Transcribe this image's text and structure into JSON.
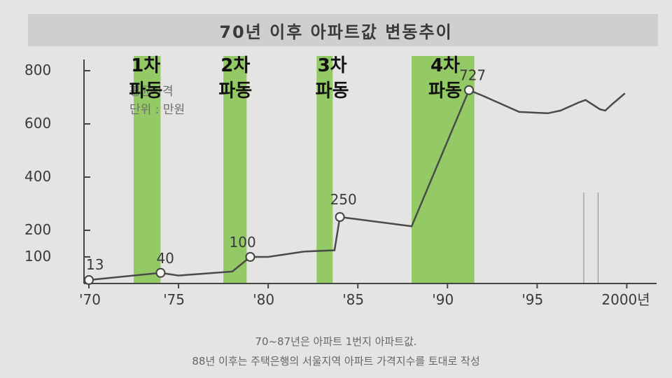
{
  "chart_data": {
    "type": "line",
    "title": "70년 이후 아파트값 변동추이",
    "unit_lines": [
      "평균가격",
      "단위 : 만원"
    ],
    "x_ticks": [
      "'70",
      "'75",
      "'80",
      "'85",
      "'90",
      "'95",
      "2000년"
    ],
    "x_tick_values": [
      1970,
      1975,
      1980,
      1985,
      1990,
      1995,
      2000
    ],
    "y_ticks": [
      "800",
      "600",
      "400",
      "200",
      "100"
    ],
    "y_tick_values": [
      800,
      600,
      400,
      200,
      100
    ],
    "ylim": [
      0,
      800
    ],
    "xlim": [
      1970,
      2001
    ],
    "series": [
      {
        "x": [
          1970,
          1974,
          1975,
          1978,
          1979,
          1980,
          1982,
          1983.7,
          1984,
          1988,
          1991.2,
          1992,
          1994,
          1995.6,
          1996.3,
          1997.3,
          1997.7,
          1998.5,
          1998.8,
          1999.2,
          1999.9
        ],
        "y": [
          13,
          40,
          30,
          45,
          100,
          100,
          120,
          125,
          250,
          215,
          727,
          705,
          645,
          640,
          650,
          680,
          690,
          655,
          650,
          675,
          715
        ]
      }
    ],
    "point_labels": [
      {
        "x": 1970,
        "y": 13,
        "text": "13"
      },
      {
        "x": 1974,
        "y": 40,
        "text": "40"
      },
      {
        "x": 1979,
        "y": 100,
        "text": "100"
      },
      {
        "x": 1984,
        "y": 250,
        "text": "250"
      },
      {
        "x": 1991.2,
        "y": 727,
        "text": "727"
      }
    ],
    "phases": [
      {
        "label_top": "1차",
        "label_bottom": "파동",
        "x_start": 1972.5,
        "x_end": 1974
      },
      {
        "label_top": "2차",
        "label_bottom": "파동",
        "x_start": 1977.5,
        "x_end": 1978.8
      },
      {
        "label_top": "3차",
        "label_bottom": "파동",
        "x_start": 1982.7,
        "x_end": 1983.6
      },
      {
        "label_top": "4차",
        "label_bottom": "파동",
        "x_start": 1988,
        "x_end": 1991.5
      }
    ],
    "phase_color": "#8dc85a",
    "line_color": "#4a4a4a",
    "grid": false
  },
  "footer": {
    "line1": "70~87년은 아파트 1번지 아파트값.",
    "line2": "88년 이후는 주택은행의 서울지역 아파트 가격지수를 토대로 작성"
  }
}
